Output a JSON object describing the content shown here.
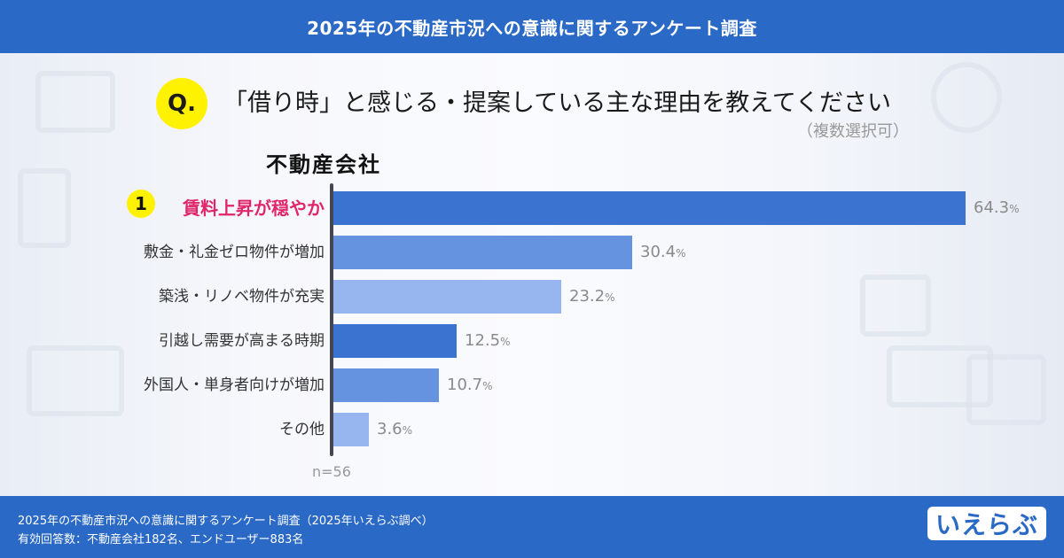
{
  "header": {
    "title": "2025年の不動産市況への意識に関するアンケート調査"
  },
  "question": {
    "badge": "Q.",
    "text": "「借り時」と感じる・提案している主な理由を教えてください",
    "note": "（複数選択可）"
  },
  "group": {
    "title": "不動産会社"
  },
  "rank_badge": "1",
  "rows": [
    {
      "label": "賃料上昇が穏やか",
      "value": "64.3",
      "unit": "%",
      "color": "#3b74d0",
      "highlight": true
    },
    {
      "label": "敷金・礼金ゼロ物件が増加",
      "value": "30.4",
      "unit": "%",
      "color": "#6593df"
    },
    {
      "label": "築浅・リノベ物件が充実",
      "value": "23.2",
      "unit": "%",
      "color": "#97b5ee"
    },
    {
      "label": "引越し需要が高まる時期",
      "value": "12.5",
      "unit": "%",
      "color": "#3b74d0"
    },
    {
      "label": "外国人・単身者向けが増加",
      "value": "10.7",
      "unit": "%",
      "color": "#6593df"
    },
    {
      "label": "その他",
      "value": "3.6",
      "unit": "%",
      "color": "#97b5ee"
    }
  ],
  "sample_note": "n=56",
  "footer": {
    "line1": "2025年の不動産市況への意識に関するアンケート調査（2025年いえらぶ調べ）",
    "line2": "有効回答数：不動産会社182名、エンドユーザー883名",
    "logo": "いえらぶ"
  },
  "colors": {
    "brand": "#2a69c6",
    "accent_yellow": "#fff200",
    "highlight_text": "#e0266b"
  },
  "chart_data": {
    "type": "bar",
    "orientation": "horizontal",
    "title": "「借り時」と感じる・提案している主な理由を教えてください（複数選択可）",
    "subtitle": "不動産会社",
    "categories": [
      "賃料上昇が穏やか",
      "敷金・礼金ゼロ物件が増加",
      "築浅・リノベ物件が充実",
      "引越し需要が高まる時期",
      "外国人・単身者向けが増加",
      "その他"
    ],
    "values": [
      64.3,
      30.4,
      23.2,
      12.5,
      10.7,
      3.6
    ],
    "unit": "%",
    "n": 56,
    "xlabel": "",
    "ylabel": "",
    "xlim": [
      0,
      100
    ],
    "grid": false,
    "legend": null
  }
}
